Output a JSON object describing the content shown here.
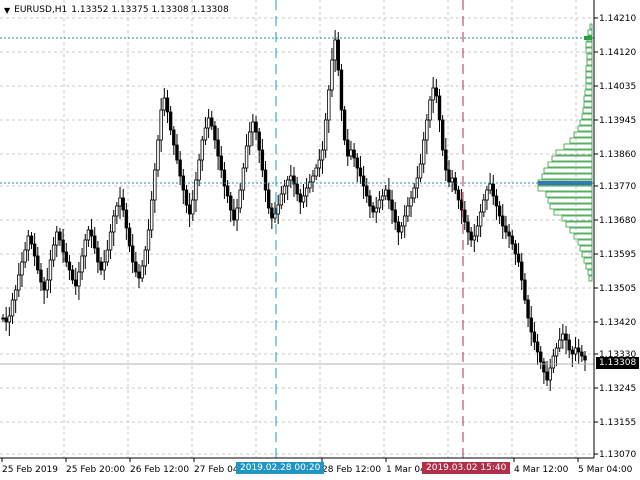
{
  "header": {
    "symbol": "EURUSD,H1",
    "ohlc": "1.13352 1.13375 1.13308 1.13308",
    "menu_icon": "triangle-down-icon"
  },
  "price_axis": {
    "labels": [
      "1.14210",
      "1.14120",
      "1.14035",
      "1.13945",
      "1.13860",
      "1.13770",
      "1.13680",
      "1.13595",
      "1.13505",
      "1.13420",
      "1.13330",
      "1.13245",
      "1.13155",
      "1.13070"
    ],
    "current_price": "1.13308"
  },
  "time_axis": {
    "labels": [
      "25 Feb 2019",
      "25 Feb 20:00",
      "26 Feb 12:00",
      "27 Feb 04:00",
      "28 Feb 12:00",
      "1 Mar 04:00",
      "4 Mar 12:00",
      "5 Mar 04:00"
    ]
  },
  "markers": {
    "left_date": "2019.02.28 00:20",
    "right_date": "2019.03.02 15:40"
  },
  "colors": {
    "background": "#ffffff",
    "grid": "#c8c8c8",
    "candle": "#000000",
    "volume_profile": "#2a9d3a",
    "poc": "#3a73b8",
    "left_marker": "#2196c4",
    "right_marker": "#b0304a",
    "level_line": "#2a8aa6",
    "bid_line": "#b0b0b0"
  },
  "chart_data": {
    "type": "candlestick",
    "title": "EURUSD,H1",
    "ylim": [
      1.1305,
      1.1425
    ],
    "grid": true,
    "visible_levels": {
      "upper_dashed": 1.14145,
      "middle_dashed": 1.13785,
      "bid": 1.13308
    },
    "series": [
      {
        "name": "EURUSD,H1",
        "ohlc_description": "hourly candles from 25 Feb 2019 to 5 Mar 2019"
      }
    ]
  }
}
